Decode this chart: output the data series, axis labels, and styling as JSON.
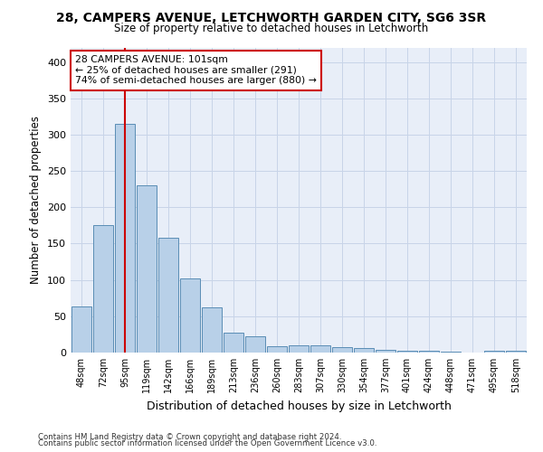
{
  "title1": "28, CAMPERS AVENUE, LETCHWORTH GARDEN CITY, SG6 3SR",
  "title2": "Size of property relative to detached houses in Letchworth",
  "xlabel": "Distribution of detached houses by size in Letchworth",
  "ylabel": "Number of detached properties",
  "categories": [
    "48sqm",
    "72sqm",
    "95sqm",
    "119sqm",
    "142sqm",
    "166sqm",
    "189sqm",
    "213sqm",
    "236sqm",
    "260sqm",
    "283sqm",
    "307sqm",
    "330sqm",
    "354sqm",
    "377sqm",
    "401sqm",
    "424sqm",
    "448sqm",
    "471sqm",
    "495sqm",
    "518sqm"
  ],
  "values": [
    63,
    175,
    315,
    230,
    158,
    102,
    62,
    27,
    22,
    9,
    10,
    10,
    8,
    6,
    4,
    3,
    2,
    1,
    0,
    3,
    2
  ],
  "bar_color": "#b8d0e8",
  "bar_edge_color": "#5a8db5",
  "vline_x": 2,
  "vline_color": "#cc0000",
  "annotation_line1": "28 CAMPERS AVENUE: 101sqm",
  "annotation_line2": "← 25% of detached houses are smaller (291)",
  "annotation_line3": "74% of semi-detached houses are larger (880) →",
  "annotation_box_color": "#ffffff",
  "annotation_box_edge": "#cc0000",
  "ylim": [
    0,
    420
  ],
  "yticks": [
    0,
    50,
    100,
    150,
    200,
    250,
    300,
    350,
    400
  ],
  "grid_color": "#c8d4e8",
  "background_color": "#e8eef8",
  "footer1": "Contains HM Land Registry data © Crown copyright and database right 2024.",
  "footer2": "Contains public sector information licensed under the Open Government Licence v3.0."
}
